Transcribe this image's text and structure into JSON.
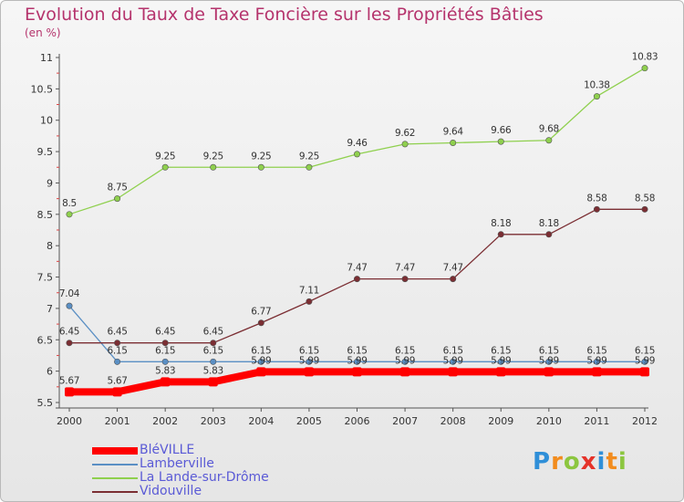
{
  "title": "Evolution du Taux de Taxe Foncière sur les Propriétés Bâties",
  "subtitle": "(en %)",
  "brand": "Proxiti",
  "brand_letters": [
    "P",
    "r",
    "o",
    "x",
    "i",
    "t",
    "i"
  ],
  "brand_colors": [
    "#2f8fd8",
    "#f28c1e",
    "#8cc63f",
    "#e5332a",
    "#2f8fd8",
    "#f28c1e",
    "#8cc63f"
  ],
  "chart_data": {
    "type": "line",
    "title": "Evolution du Taux de Taxe Foncière sur les Propriétés Bâties",
    "subtitle": "(en %)",
    "x": [
      "2000",
      "2001",
      "2002",
      "2003",
      "2004",
      "2005",
      "2006",
      "2007",
      "2008",
      "2009",
      "2010",
      "2011",
      "2012"
    ],
    "ylim": [
      5.5,
      11
    ],
    "yticks": [
      "5.5",
      "6",
      "6.5",
      "7",
      "7.5",
      "8",
      "8.5",
      "9",
      "9.5",
      "10",
      "10.5",
      "11"
    ],
    "grid": false,
    "legend_position": "bottom-left",
    "series": [
      {
        "name": "BléVILLE",
        "color": "#ff0000",
        "values": [
          5.67,
          5.67,
          5.83,
          5.83,
          5.99,
          5.99,
          5.99,
          5.99,
          5.99,
          5.99,
          5.99,
          5.99,
          5.99
        ],
        "labels": [
          "5.67",
          "5.67",
          "5.83",
          "5.83",
          "5.99",
          "5.99",
          "5.99",
          "5.99",
          "5.99",
          "5.99",
          "5.99",
          "5.99",
          "5.99"
        ]
      },
      {
        "name": "Lamberville",
        "color": "#5a8fc4",
        "values": [
          7.04,
          6.15,
          6.15,
          6.15,
          6.15,
          6.15,
          6.15,
          6.15,
          6.15,
          6.15,
          6.15,
          6.15,
          6.15
        ],
        "labels": [
          "7.04",
          "6.15",
          "6.15",
          "6.15",
          "6.15",
          "6.15",
          "6.15",
          "6.15",
          "6.15",
          "6.15",
          "6.15",
          "6.15",
          "6.15"
        ]
      },
      {
        "name": "La Lande-sur-Drôme",
        "color": "#8fd04e",
        "values": [
          8.5,
          8.75,
          9.25,
          9.25,
          9.25,
          9.25,
          9.46,
          9.62,
          9.64,
          9.66,
          9.68,
          10.38,
          10.83
        ],
        "labels": [
          "8.5",
          "8.75",
          "9.25",
          "9.25",
          "9.25",
          "9.25",
          "9.46",
          "9.62",
          "9.64",
          "9.66",
          "9.68",
          "10.38",
          "10.83"
        ]
      },
      {
        "name": "Vidouville",
        "color": "#7b2e33",
        "values": [
          6.45,
          6.45,
          6.45,
          6.45,
          6.77,
          7.11,
          7.47,
          7.47,
          7.47,
          8.18,
          8.18,
          8.58,
          8.58
        ],
        "labels": [
          "6.45",
          "6.45",
          "6.45",
          "6.45",
          "6.77",
          "7.11",
          "7.47",
          "7.47",
          "7.47",
          "8.18",
          "8.18",
          "8.58",
          "8.58"
        ]
      }
    ]
  }
}
